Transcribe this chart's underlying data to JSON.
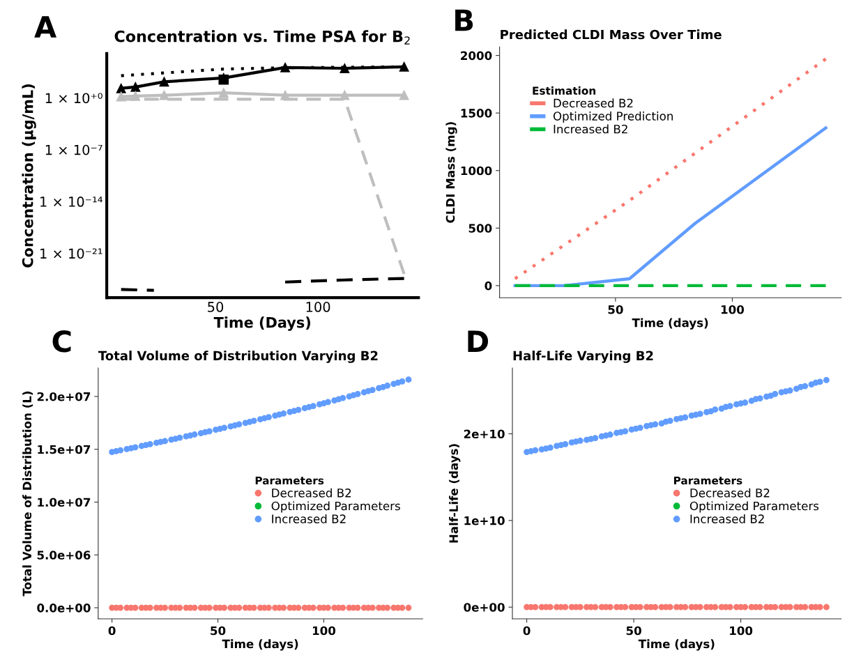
{
  "chart_data": [
    {
      "type": "line",
      "title": "Concentration vs. Time PSA for B$_{2}$",
      "xlabel": "Time (Days)",
      "ylabel": "Concentration (μg/mL)",
      "annotations": [
        "A"
      ],
      "log": "y",
      "xlim": [
        -3,
        149
      ],
      "xticks": [
        50,
        100
      ],
      "ylim": [
        1e-27,
        1000000.0
      ],
      "yticks": [
        {
          "value": 1e-21,
          "label": "1 × 10⁻²¹"
        },
        {
          "value": 1e-14,
          "label": "1 × 10⁻¹⁴"
        },
        {
          "value": 1e-07,
          "label": "1 × 10⁻⁷"
        },
        {
          "value": 1,
          "label": "1 × 10⁺⁰"
        }
      ],
      "series": [
        {
          "x": [
            4,
            54,
            84,
            142
          ],
          "values": [
            1000,
            8000,
            12000,
            16000
          ],
          "color": "#000000",
          "line_style": "dotted",
          "marker": "none"
        },
        {
          "x": [
            4,
            11,
            25,
            54,
            84,
            113,
            142
          ],
          "values": [
            20,
            30,
            150,
            500,
            13000,
            10000,
            16000
          ],
          "color": "#000000",
          "line_style": "solid",
          "marker": "triangle"
        },
        {
          "type": "scatter",
          "x": [
            54
          ],
          "values": [
            300
          ],
          "color": "#000000",
          "marker": "square"
        },
        {
          "x": [
            4,
            11,
            25,
            54,
            84,
            113,
            142
          ],
          "values": [
            1.5,
            1.8,
            2.3,
            5,
            2.3,
            2.3,
            2.3
          ],
          "color": "#bebebe",
          "line_style": "solid",
          "marker": "triangle"
        },
        {
          "x": [
            4,
            113,
            142
          ],
          "values": [
            0.66,
            0.66,
            1.6e-24
          ],
          "color": "#bebebe",
          "line_style": "dashed",
          "marker": "none"
        },
        {
          "x": [
            4,
            20,
            54,
            84,
            113,
            142
          ],
          "values": [
            1.3e-26,
            1e-26,
            null,
            1.3e-25,
            2.5e-25,
            4e-25
          ],
          "color": "#000000",
          "line_style": "dashed",
          "marker": "none"
        }
      ]
    },
    {
      "type": "line",
      "title": "Predicted CLDI Mass Over Time",
      "xlabel": "Time (days)",
      "ylabel": "CLDI Mass (mg)",
      "annotations": [
        "B"
      ],
      "legend": "top left",
      "legend_title": "Estimation",
      "xlim": [
        0.4,
        146.6
      ],
      "xticks": [
        50,
        100
      ],
      "ylim": [
        -105,
        2075
      ],
      "yticks": [
        0,
        500,
        1000,
        1500,
        2000
      ],
      "series": [
        {
          "name": "Decreased B2",
          "color": "#f8766d",
          "line_style": "dotted",
          "x": [
            7,
            56,
            140
          ],
          "values": [
            60,
            740,
            1970
          ]
        },
        {
          "name": "Optimized Prediction",
          "color": "#619cff",
          "line_style": "solid",
          "x": [
            7,
            28,
            56,
            84,
            140
          ],
          "values": [
            0,
            0,
            60,
            540,
            1370
          ]
        },
        {
          "name": "Increased B2",
          "color": "#00ba38",
          "line_style": "dashed",
          "x": [
            7,
            140
          ],
          "values": [
            0,
            0
          ]
        }
      ]
    },
    {
      "type": "scatter",
      "title": "Total Volume of Distribution Varying B2",
      "xlabel": "Time (days)",
      "ylabel": "Total Volume of Distribution (L)",
      "annotations": [
        "C"
      ],
      "legend": "center right",
      "legend_title": "Parameters",
      "marker": "circle",
      "xlim": [
        -6.5,
        146.7
      ],
      "xticks": [
        0,
        50,
        100
      ],
      "ylim": [
        -1050000.0,
        22700000.0
      ],
      "yticks": [
        {
          "value": 0,
          "label": "0.0e+00"
        },
        {
          "value": 5000000.0,
          "label": "5.0e+06"
        },
        {
          "value": 10000000.0,
          "label": "1.0e+07"
        },
        {
          "value": 15000000.0,
          "label": "1.5e+07"
        },
        {
          "value": 20000000.0,
          "label": "2.0e+07"
        }
      ],
      "x": [
        0,
        2,
        4,
        7,
        9,
        11,
        14,
        16,
        18,
        21,
        23,
        25,
        28,
        30,
        32,
        35,
        37,
        39,
        42,
        44,
        46,
        49,
        51,
        53,
        56,
        58,
        60,
        63,
        65,
        67,
        70,
        72,
        74,
        77,
        79,
        81,
        84,
        86,
        88,
        91,
        93,
        95,
        98,
        100,
        102,
        105,
        107,
        109,
        112,
        114,
        116,
        119,
        121,
        123,
        126,
        128,
        130,
        133,
        135,
        137,
        140
      ],
      "series": [
        {
          "name": "Decreased B2",
          "color": "#f8766d",
          "values": [
            0,
            0,
            0,
            0,
            0,
            0,
            0,
            0,
            0,
            0,
            0,
            0,
            0,
            0,
            0,
            0,
            0,
            0,
            0,
            0,
            0,
            0,
            0,
            0,
            0,
            0,
            0,
            0,
            0,
            0,
            0,
            0,
            0,
            0,
            0,
            0,
            0,
            0,
            0,
            0,
            0,
            0,
            0,
            0,
            0,
            0,
            0,
            0,
            0,
            0,
            0,
            0,
            0,
            0,
            0,
            0,
            0,
            0,
            0,
            0,
            0
          ]
        },
        {
          "name": "Optimized Parameters",
          "color": "#00ba38",
          "values": [
            null,
            null,
            null,
            null,
            null,
            null,
            null,
            null,
            null,
            null,
            null,
            null,
            null,
            null,
            null,
            null,
            null,
            null,
            null,
            null,
            null,
            null,
            null,
            null,
            null,
            null,
            null,
            null,
            null,
            null,
            null,
            null,
            null,
            null,
            null,
            null,
            null,
            null,
            null,
            null,
            null,
            null,
            null,
            null,
            null,
            null,
            null,
            null,
            null,
            null,
            null,
            null,
            null,
            null,
            null,
            null,
            null,
            null,
            null,
            null,
            null
          ]
        },
        {
          "name": "Increased B2",
          "color": "#619cff",
          "values": [
            14740000.0,
            14820000.0,
            14900000.0,
            15020000.0,
            15100000.0,
            15190000.0,
            15310000.0,
            15400000.0,
            15480000.0,
            15610000.0,
            15700000.0,
            15780000.0,
            15910000.0,
            16000000.0,
            16090000.0,
            16220000.0,
            16310000.0,
            16400000.0,
            16530000.0,
            16620000.0,
            16710000.0,
            16850000.0,
            16940000.0,
            17030000.0,
            17170000.0,
            17270000.0,
            17360000.0,
            17500000.0,
            17600000.0,
            17700000.0,
            17840000.0,
            17940000.0,
            18040000.0,
            18190000.0,
            18290000.0,
            18390000.0,
            18540000.0,
            18640000.0,
            18740000.0,
            18890000.0,
            19000000.0,
            19100000.0,
            19260000.0,
            19360000.0,
            19470000.0,
            19630000.0,
            19740000.0,
            19850000.0,
            20010000.0,
            20120000.0,
            20230000.0,
            20390000.0,
            20510000.0,
            20620000.0,
            20790000.0,
            20900000.0,
            21020000.0,
            21190000.0,
            21310000.0,
            21420000.0,
            21600000.0
          ]
        }
      ]
    },
    {
      "type": "scatter",
      "title": "Half-Life Varying B2",
      "xlabel": "Time (days)",
      "ylabel": "Half-Life (days)",
      "annotations": [
        "D"
      ],
      "legend": "center right",
      "legend_title": "Parameters",
      "marker": "circle",
      "xlim": [
        -6.7,
        146.9
      ],
      "xticks": [
        0,
        50,
        100
      ],
      "ylim": [
        -1350000000.0,
        27600000000.0
      ],
      "yticks": [
        {
          "value": 0,
          "label": "0e+00"
        },
        {
          "value": 10000000000.0,
          "label": "1e+10"
        },
        {
          "value": 20000000000.0,
          "label": "2e+10"
        }
      ],
      "x": [
        0,
        2,
        4,
        7,
        9,
        11,
        14,
        16,
        18,
        21,
        23,
        25,
        28,
        30,
        32,
        35,
        37,
        39,
        42,
        44,
        46,
        49,
        51,
        53,
        56,
        58,
        60,
        63,
        65,
        67,
        70,
        72,
        74,
        77,
        79,
        81,
        84,
        86,
        88,
        91,
        93,
        95,
        98,
        100,
        102,
        105,
        107,
        109,
        112,
        114,
        116,
        119,
        121,
        123,
        126,
        128,
        130,
        133,
        135,
        137,
        140
      ],
      "series": [
        {
          "name": "Decreased B2",
          "color": "#f8766d",
          "values": [
            0,
            0,
            0,
            0,
            0,
            0,
            0,
            0,
            0,
            0,
            0,
            0,
            0,
            0,
            0,
            0,
            0,
            0,
            0,
            0,
            0,
            0,
            0,
            0,
            0,
            0,
            0,
            0,
            0,
            0,
            0,
            0,
            0,
            0,
            0,
            0,
            0,
            0,
            0,
            0,
            0,
            0,
            0,
            0,
            0,
            0,
            0,
            0,
            0,
            0,
            0,
            0,
            0,
            0,
            0,
            0,
            0,
            0,
            0,
            0,
            0
          ]
        },
        {
          "name": "Optimized Parameters",
          "color": "#00ba38",
          "values": [
            null,
            null,
            null,
            null,
            null,
            null,
            null,
            null,
            null,
            null,
            null,
            null,
            null,
            null,
            null,
            null,
            null,
            null,
            null,
            null,
            null,
            null,
            null,
            null,
            null,
            null,
            null,
            null,
            null,
            null,
            null,
            null,
            null,
            null,
            null,
            null,
            null,
            null,
            null,
            null,
            null,
            null,
            null,
            null,
            null,
            null,
            null,
            null,
            null,
            null,
            null,
            null,
            null,
            null,
            null,
            null,
            null,
            null,
            null,
            null,
            null
          ]
        },
        {
          "name": "Increased B2",
          "color": "#619cff",
          "values": [
            17900000000.0,
            18000000000.0,
            18100000000.0,
            18200000000.0,
            18300000000.0,
            18400000000.0,
            18600000000.0,
            18700000000.0,
            18800000000.0,
            19000000000.0,
            19100000000.0,
            19200000000.0,
            19300000000.0,
            19400000000.0,
            19500000000.0,
            19700000000.0,
            19800000000.0,
            19900000000.0,
            20100000000.0,
            20200000000.0,
            20300000000.0,
            20500000000.0,
            20600000000.0,
            20700000000.0,
            20900000000.0,
            21000000000.0,
            21100000000.0,
            21200000000.0,
            21400000000.0,
            21500000000.0,
            21700000000.0,
            21800000000.0,
            21900000000.0,
            22100000000.0,
            22200000000.0,
            22300000000.0,
            22500000000.0,
            22600000000.0,
            22800000000.0,
            22900000000.0,
            23100000000.0,
            23200000000.0,
            23400000000.0,
            23500000000.0,
            23600000000.0,
            23800000000.0,
            24000000000.0,
            24100000000.0,
            24300000000.0,
            24400000000.0,
            24600000000.0,
            24800000000.0,
            24900000000.0,
            25000000000.0,
            25200000000.0,
            25400000000.0,
            25500000000.0,
            25700000000.0,
            25900000000.0,
            26000000000.0,
            26200000000.0
          ]
        }
      ]
    }
  ]
}
